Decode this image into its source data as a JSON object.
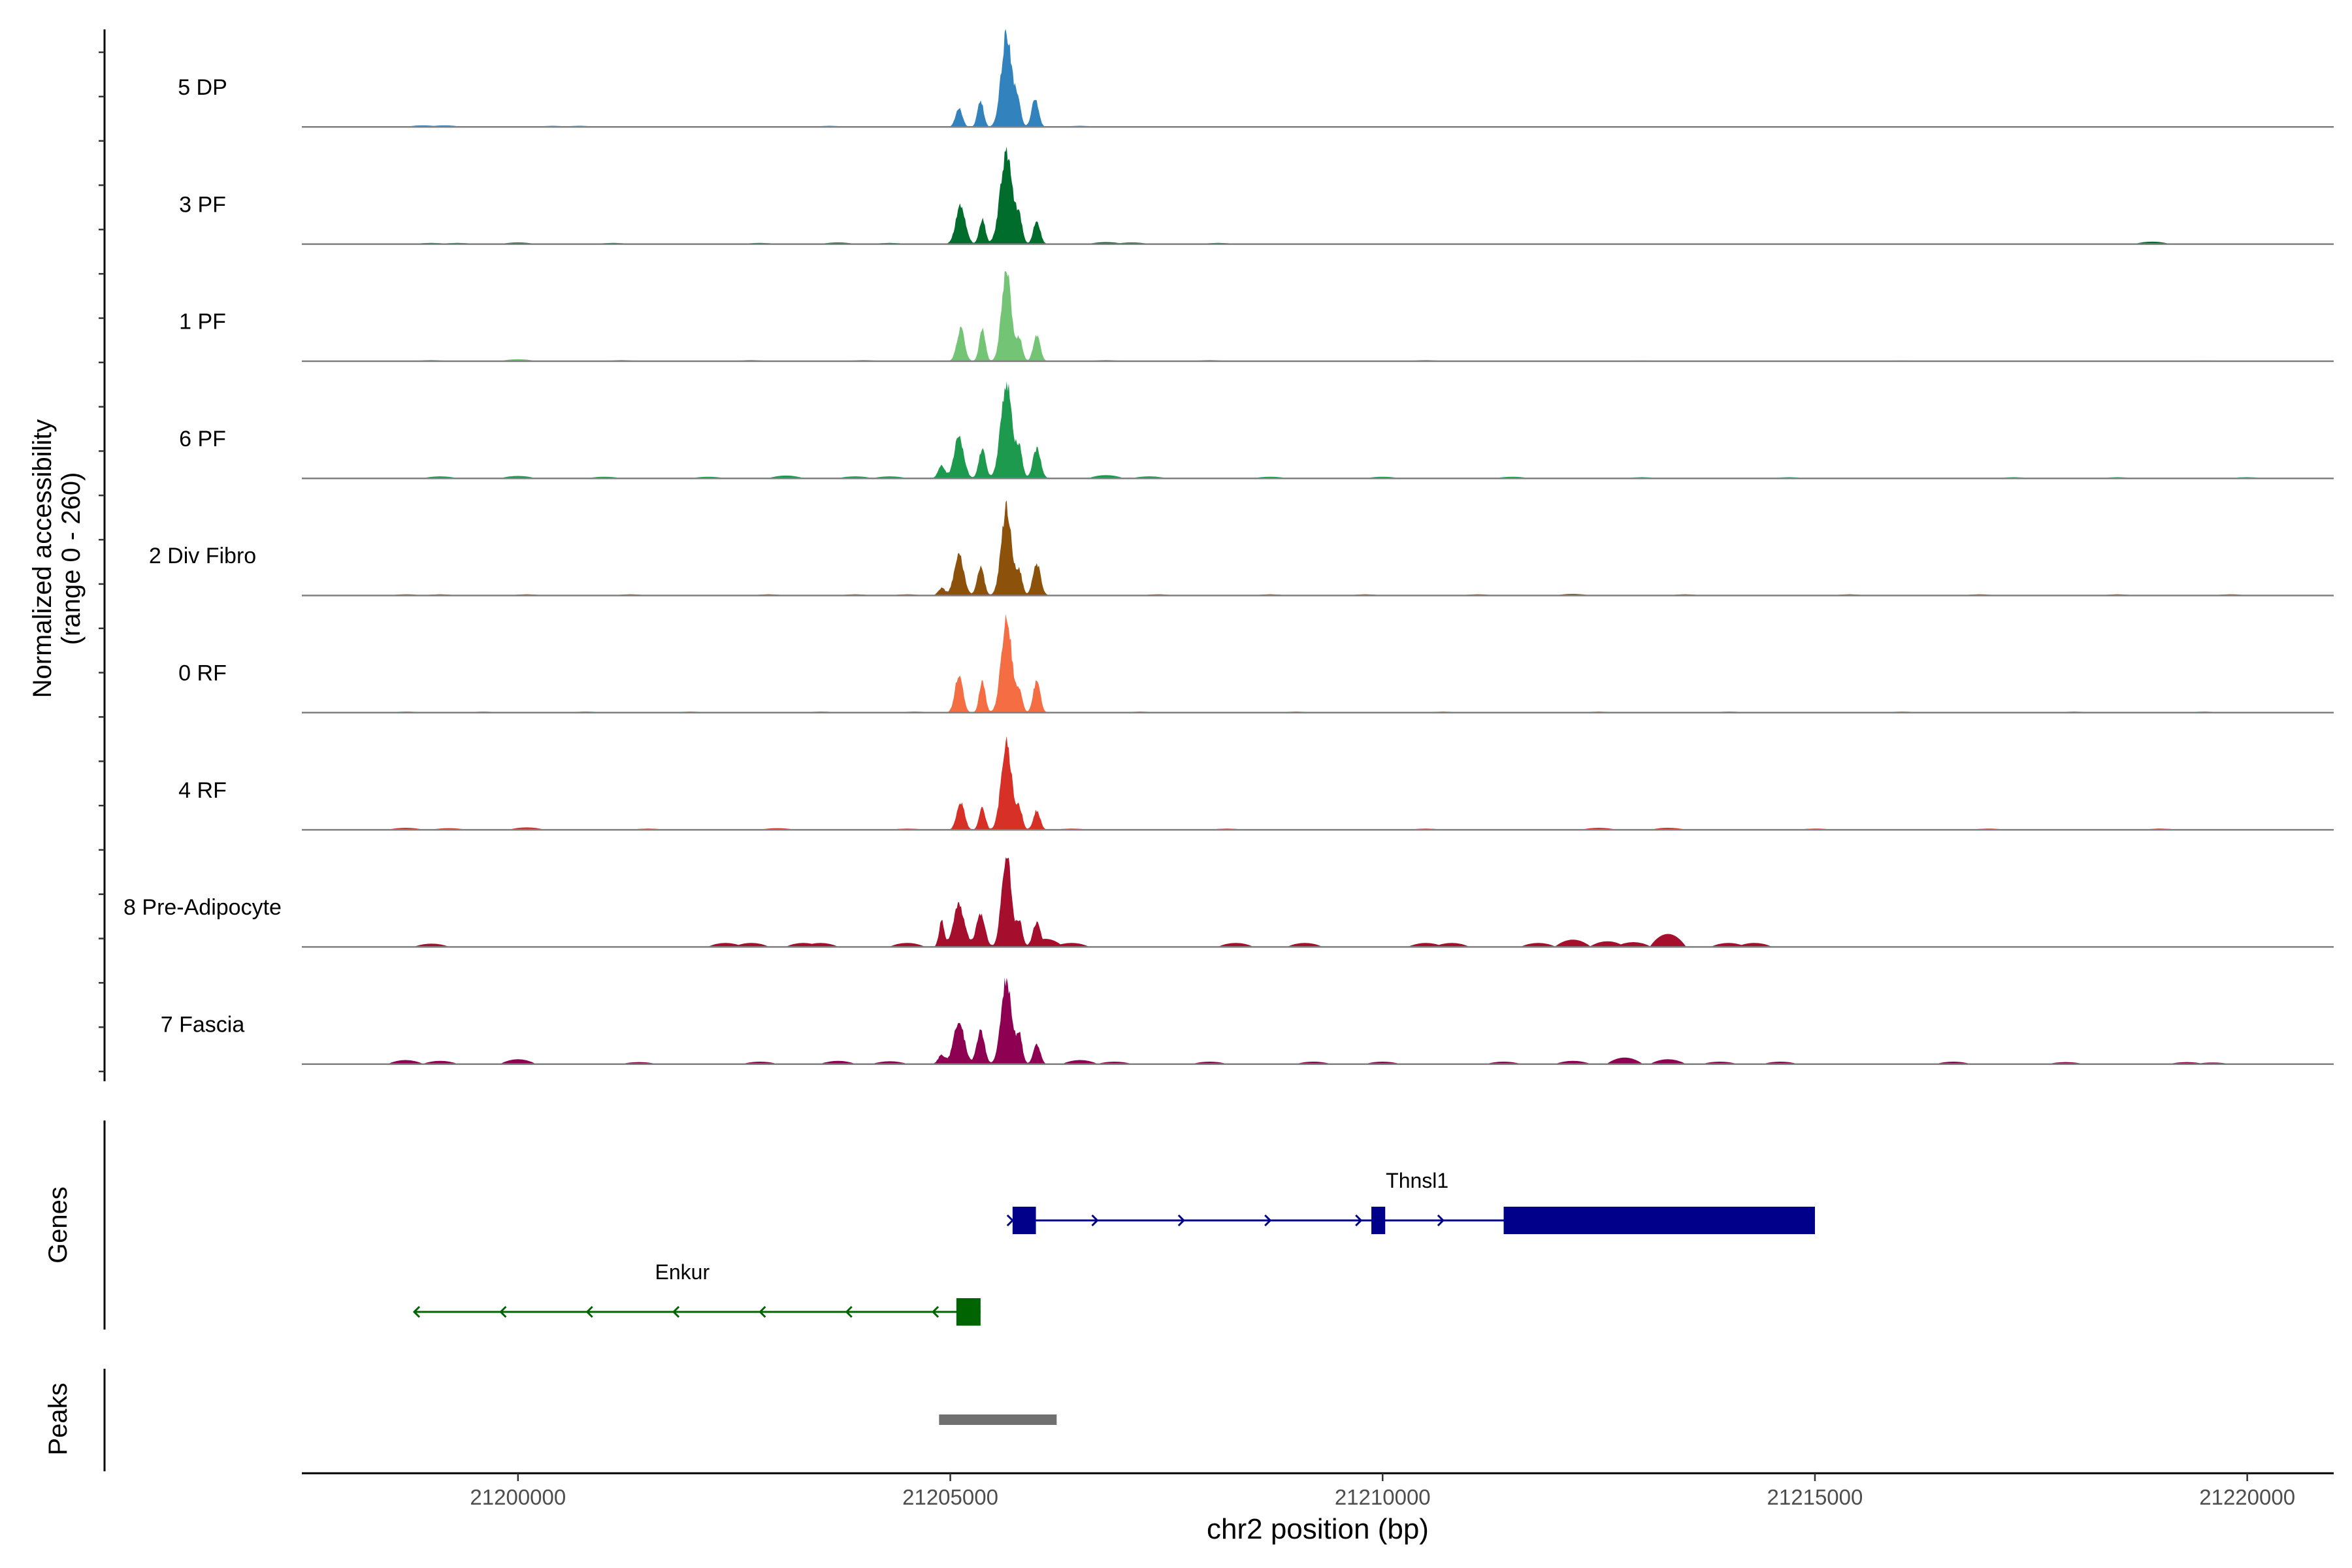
{
  "chart_data": {
    "type": "area",
    "title": "",
    "region": {
      "chrom": "chr2",
      "start": 21197500,
      "end": 21221000
    },
    "xlabel": "chr2 position (bp)",
    "xticks": [
      21200000,
      21205000,
      21210000,
      21215000,
      21220000
    ],
    "xtick_labels": [
      "21200000",
      "21205000",
      "21210000",
      "21215000",
      "21220000"
    ],
    "ylabel_line1": "Normalized accessibility",
    "ylabel_line2": "(range 0 - 260)",
    "ylim": [
      0,
      260
    ],
    "tracks": [
      {
        "name": "5 DP",
        "color": "#3182bd",
        "peaks": [
          [
            21205100,
            50,
            40
          ],
          [
            21205350,
            72,
            35
          ],
          [
            21205650,
            255,
            60
          ],
          [
            21205980,
            78,
            40
          ],
          [
            21205780,
            70,
            35
          ]
        ],
        "blips": [
          [
            21198900,
            4
          ],
          [
            21199150,
            4
          ],
          [
            21200400,
            3
          ],
          [
            21200700,
            3
          ],
          [
            21202300,
            2
          ],
          [
            21203600,
            3
          ],
          [
            21206500,
            3
          ],
          [
            21207200,
            2
          ],
          [
            21208800,
            2
          ]
        ]
      },
      {
        "name": "3 PF",
        "color": "#006d2c",
        "peaks": [
          [
            21205120,
            105,
            55
          ],
          [
            21205370,
            68,
            35
          ],
          [
            21205650,
            250,
            70
          ],
          [
            21206000,
            62,
            40
          ],
          [
            21205800,
            60,
            35
          ]
        ],
        "blips": [
          [
            21199000,
            3
          ],
          [
            21199300,
            3
          ],
          [
            21200000,
            4
          ],
          [
            21201100,
            3
          ],
          [
            21202800,
            3
          ],
          [
            21203700,
            4
          ],
          [
            21204300,
            3
          ],
          [
            21206800,
            5
          ],
          [
            21207100,
            4
          ],
          [
            21208100,
            3
          ],
          [
            21218900,
            6
          ]
        ]
      },
      {
        "name": "1 PF",
        "color": "#74c476",
        "peaks": [
          [
            21205120,
            90,
            45
          ],
          [
            21205370,
            88,
            35
          ],
          [
            21205650,
            255,
            55
          ],
          [
            21206000,
            70,
            40
          ],
          [
            21205800,
            60,
            35
          ]
        ],
        "blips": [
          [
            21199000,
            3
          ],
          [
            21200000,
            5
          ],
          [
            21201200,
            3
          ],
          [
            21202700,
            3
          ],
          [
            21204000,
            3
          ],
          [
            21206800,
            3
          ],
          [
            21208000,
            3
          ],
          [
            21210500,
            3
          ],
          [
            21213000,
            2
          ],
          [
            21216000,
            2
          ],
          [
            21219500,
            2
          ]
        ]
      },
      {
        "name": "6 PF",
        "color": "#1d9a4e",
        "peaks": [
          [
            21205100,
            115,
            55
          ],
          [
            21205370,
            80,
            40
          ],
          [
            21205650,
            258,
            65
          ],
          [
            21206000,
            80,
            45
          ],
          [
            21205800,
            75,
            35
          ],
          [
            21204900,
            35,
            40
          ]
        ],
        "blips": [
          [
            21199100,
            5
          ],
          [
            21200000,
            6
          ],
          [
            21201000,
            4
          ],
          [
            21202200,
            4
          ],
          [
            21203100,
            7
          ],
          [
            21203900,
            5
          ],
          [
            21204300,
            5
          ],
          [
            21206800,
            8
          ],
          [
            21207300,
            5
          ],
          [
            21208700,
            4
          ],
          [
            21210000,
            4
          ],
          [
            21211500,
            4
          ],
          [
            21213000,
            3
          ],
          [
            21214700,
            3
          ],
          [
            21217300,
            3
          ],
          [
            21218500,
            3
          ],
          [
            21220000,
            3
          ]
        ]
      },
      {
        "name": "2 Div Fibro",
        "color": "#8c510a",
        "peaks": [
          [
            21205100,
            110,
            55
          ],
          [
            21205350,
            80,
            40
          ],
          [
            21205650,
            235,
            60
          ],
          [
            21206000,
            85,
            45
          ],
          [
            21205800,
            60,
            35
          ],
          [
            21204900,
            20,
            40
          ]
        ],
        "blips": [
          [
            21198700,
            3
          ],
          [
            21199100,
            3
          ],
          [
            21200100,
            3
          ],
          [
            21201300,
            3
          ],
          [
            21202900,
            3
          ],
          [
            21203900,
            3
          ],
          [
            21204500,
            3
          ],
          [
            21207400,
            3
          ],
          [
            21208700,
            3
          ],
          [
            21209800,
            3
          ],
          [
            21211100,
            3
          ],
          [
            21212200,
            4
          ],
          [
            21213500,
            3
          ],
          [
            21215400,
            3
          ],
          [
            21216900,
            3
          ],
          [
            21218500,
            3
          ],
          [
            21219800,
            3
          ]
        ]
      },
      {
        "name": "0 RF",
        "color": "#f46d43",
        "peaks": [
          [
            21205100,
            105,
            45
          ],
          [
            21205370,
            88,
            35
          ],
          [
            21205650,
            258,
            60
          ],
          [
            21206000,
            88,
            40
          ],
          [
            21205800,
            55,
            35
          ]
        ],
        "blips": [
          [
            21198700,
            3
          ],
          [
            21199600,
            3
          ],
          [
            21200800,
            3
          ],
          [
            21202000,
            3
          ],
          [
            21203500,
            3
          ],
          [
            21204600,
            3
          ],
          [
            21207200,
            3
          ],
          [
            21209000,
            3
          ],
          [
            21210700,
            3
          ],
          [
            21212500,
            3
          ],
          [
            21214000,
            3
          ],
          [
            21216000,
            3
          ],
          [
            21218000,
            3
          ],
          [
            21219500,
            3
          ]
        ]
      },
      {
        "name": "4 RF",
        "color": "#d73027",
        "peaks": [
          [
            21205120,
            75,
            45
          ],
          [
            21205370,
            62,
            35
          ],
          [
            21205650,
            240,
            60
          ],
          [
            21206000,
            52,
            40
          ],
          [
            21205800,
            55,
            35
          ]
        ],
        "blips": [
          [
            21198700,
            5
          ],
          [
            21199200,
            4
          ],
          [
            21200100,
            6
          ],
          [
            21201500,
            3
          ],
          [
            21203000,
            4
          ],
          [
            21204500,
            3
          ],
          [
            21206400,
            3
          ],
          [
            21208200,
            3
          ],
          [
            21210500,
            3
          ],
          [
            21212500,
            5
          ],
          [
            21213300,
            5
          ],
          [
            21215000,
            3
          ],
          [
            21217000,
            3
          ],
          [
            21219000,
            3
          ]
        ]
      },
      {
        "name": "8 Pre-Adipocyte",
        "color": "#a50f2d",
        "peaks": [
          [
            21205100,
            115,
            65
          ],
          [
            21205350,
            90,
            50
          ],
          [
            21205650,
            255,
            55
          ],
          [
            21206000,
            65,
            45
          ],
          [
            21205800,
            70,
            35
          ],
          [
            21204900,
            70,
            30
          ]
        ],
        "blips": [
          [
            21199000,
            8
          ],
          [
            21202400,
            10
          ],
          [
            21202700,
            10
          ],
          [
            21203300,
            10
          ],
          [
            21203500,
            10
          ],
          [
            21204500,
            10
          ],
          [
            21206100,
            20
          ],
          [
            21206400,
            10
          ],
          [
            21208300,
            10
          ],
          [
            21209100,
            10
          ],
          [
            21210500,
            10
          ],
          [
            21210800,
            10
          ],
          [
            21211800,
            10
          ],
          [
            21212200,
            18
          ],
          [
            21212600,
            14
          ],
          [
            21212900,
            12
          ],
          [
            21213300,
            32
          ],
          [
            21214000,
            10
          ],
          [
            21214300,
            10
          ]
        ]
      },
      {
        "name": "7 Fascia",
        "color": "#8e0152",
        "peaks": [
          [
            21205100,
            120,
            60
          ],
          [
            21205350,
            90,
            45
          ],
          [
            21205650,
            230,
            60
          ],
          [
            21206000,
            55,
            40
          ],
          [
            21205800,
            75,
            35
          ],
          [
            21204900,
            25,
            40
          ]
        ],
        "blips": [
          [
            21198700,
            10
          ],
          [
            21199100,
            8
          ],
          [
            21200000,
            12
          ],
          [
            21201400,
            5
          ],
          [
            21202800,
            6
          ],
          [
            21203700,
            8
          ],
          [
            21204300,
            7
          ],
          [
            21206500,
            10
          ],
          [
            21206900,
            6
          ],
          [
            21208000,
            6
          ],
          [
            21209200,
            6
          ],
          [
            21210000,
            6
          ],
          [
            21211400,
            6
          ],
          [
            21212200,
            8
          ],
          [
            21212800,
            16
          ],
          [
            21213300,
            12
          ],
          [
            21213900,
            6
          ],
          [
            21214600,
            6
          ],
          [
            21216600,
            6
          ],
          [
            21217900,
            5
          ],
          [
            21219300,
            5
          ],
          [
            21219600,
            4
          ]
        ]
      }
    ],
    "genes_label": "Genes",
    "genes": [
      {
        "name": "Thnsl1",
        "strand": "+",
        "color": "#00008b",
        "start": 21205720,
        "end": 21215000,
        "exons": [
          [
            21205720,
            21205990
          ],
          [
            21209870,
            21210030
          ],
          [
            21211400,
            21215000
          ]
        ],
        "arrows": [
          21205720,
          21206700,
          21207700,
          21208700,
          21209750,
          21210700
        ]
      },
      {
        "name": "Enkur",
        "strand": "-",
        "color": "#006400",
        "start": 21198800,
        "end": 21205350,
        "exons": [
          [
            21205070,
            21205350
          ]
        ],
        "arrows": [
          21198800,
          21199800,
          21200800,
          21201800,
          21202800,
          21203800,
          21204800
        ]
      }
    ],
    "peaks_label": "Peaks",
    "peak_regions": [
      [
        21204870,
        21206230
      ]
    ],
    "peak_color": "#707070"
  }
}
